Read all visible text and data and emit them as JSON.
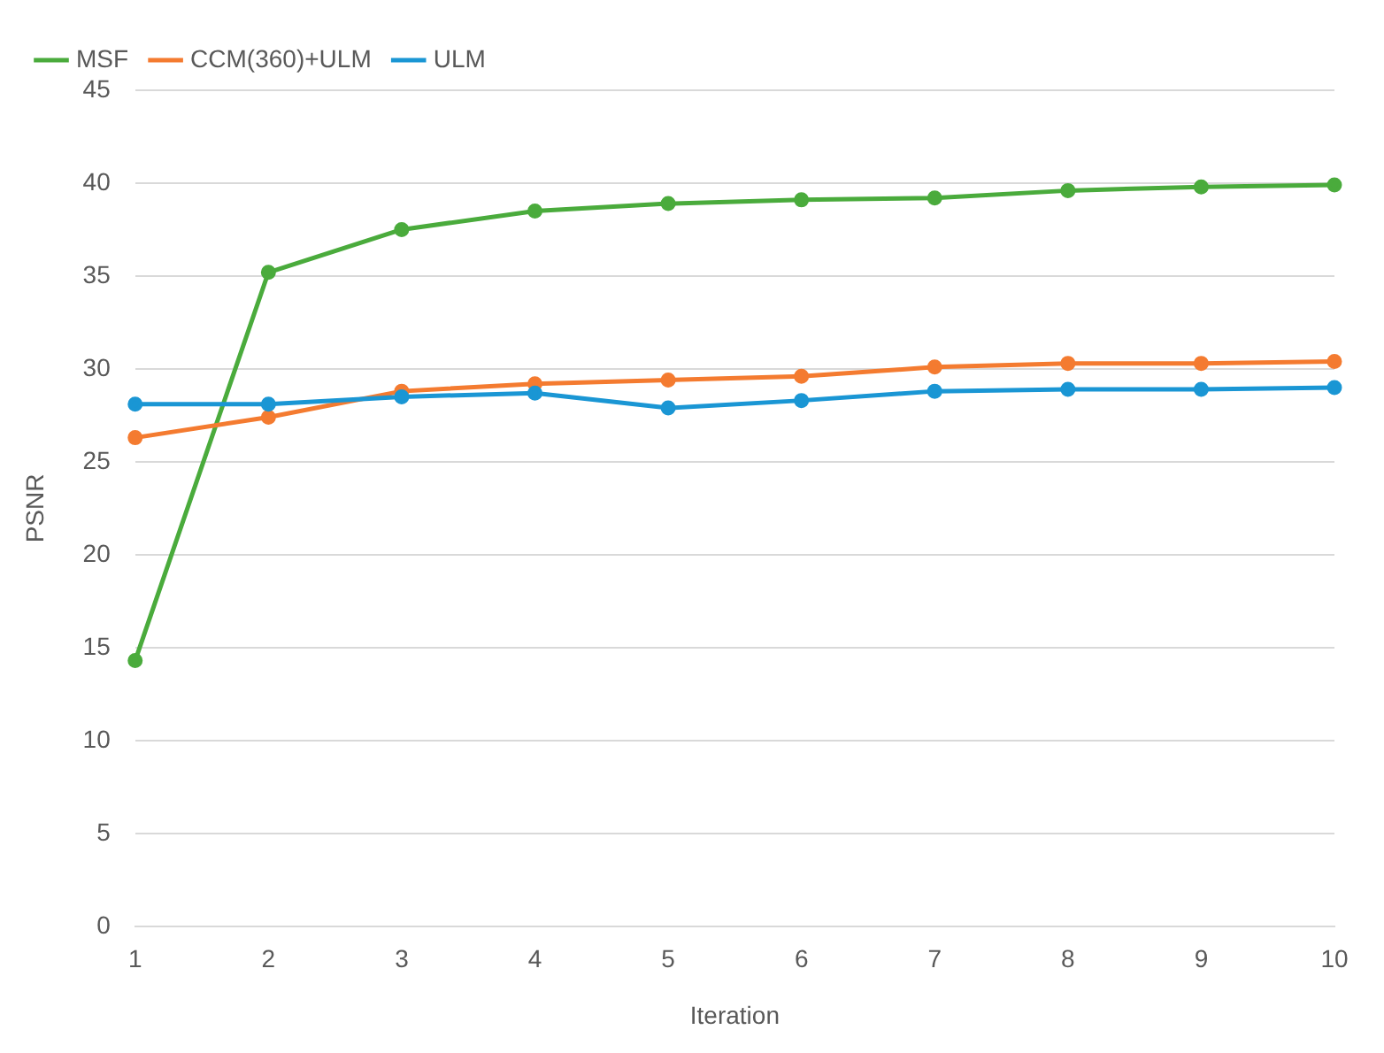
{
  "chart_data": {
    "type": "line",
    "xlabel": "Iteration",
    "ylabel": "PSNR",
    "categories": [
      "1",
      "2",
      "3",
      "4",
      "5",
      "6",
      "7",
      "8",
      "9",
      "10"
    ],
    "series": [
      {
        "name": "MSF",
        "color": "#4aab3c",
        "values": [
          14.3,
          35.2,
          37.5,
          38.5,
          38.9,
          39.1,
          39.2,
          39.6,
          39.8,
          39.9
        ]
      },
      {
        "name": "CCM(360)+ULM",
        "color": "#f47b30",
        "values": [
          26.3,
          27.4,
          28.8,
          29.2,
          29.4,
          29.6,
          30.1,
          30.3,
          30.3,
          30.4
        ]
      },
      {
        "name": "ULM",
        "color": "#1a96d4",
        "values": [
          28.1,
          28.1,
          28.5,
          28.7,
          27.9,
          28.3,
          28.8,
          28.9,
          28.9,
          29.0
        ]
      }
    ],
    "ylim": [
      0,
      45
    ],
    "yticks": [
      0,
      5,
      10,
      15,
      20,
      25,
      30,
      35,
      40,
      45
    ],
    "grid": "y",
    "legend": "top left",
    "marker": "circle",
    "line_style": "solid"
  }
}
